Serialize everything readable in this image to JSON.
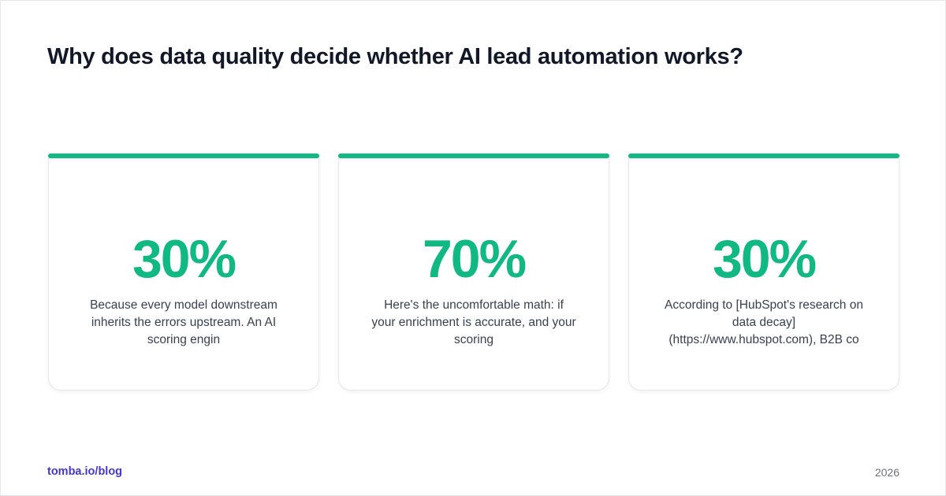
{
  "header": {
    "title": "Why does data quality decide whether AI lead automation works?"
  },
  "cards": [
    {
      "stat": "30%",
      "text": "Because every model downstream inherits the errors upstream. An AI scoring engin"
    },
    {
      "stat": "70%",
      "text": "Here's the uncomfortable math: if your enrichment is accurate, and your scoring"
    },
    {
      "stat": "30%",
      "text": "According to [HubSpot's research on data decay](https://www.hubspot.com), B2B co"
    }
  ],
  "footer": {
    "site": "tomba.io/blog",
    "year": "2026"
  }
}
